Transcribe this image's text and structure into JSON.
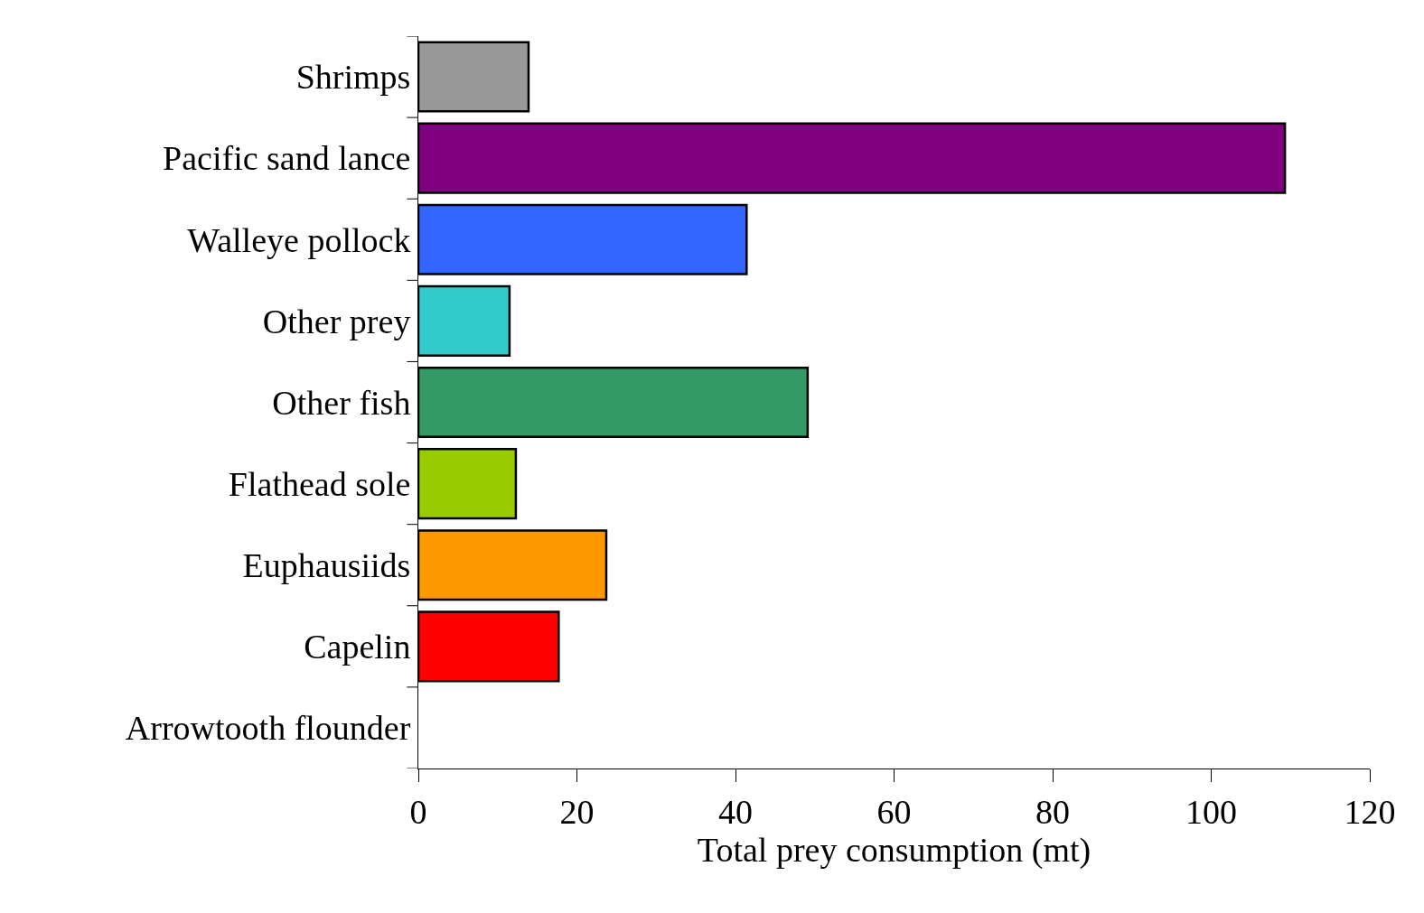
{
  "chart_data": {
    "type": "bar",
    "orientation": "horizontal",
    "xlabel": "Total prey consumption (mt)",
    "categories": [
      "Shrimps",
      "Pacific sand lance",
      "Walleye pollock",
      "Other prey",
      "Other fish",
      "Flathead sole",
      "Euphausiids",
      "Capelin",
      "Arrowtooth flounder"
    ],
    "values": [
      13.9,
      109.3,
      41.4,
      11.5,
      49.1,
      12.3,
      23.7,
      17.7,
      0
    ],
    "colors": [
      "#999999",
      "#800080",
      "#3366ff",
      "#33cccc",
      "#339966",
      "#99cc00",
      "#ff9900",
      "#ff0000",
      "#ffffff"
    ],
    "xlim": [
      0,
      120
    ],
    "xticks": [
      0,
      20,
      40,
      60,
      80,
      100,
      120
    ]
  }
}
